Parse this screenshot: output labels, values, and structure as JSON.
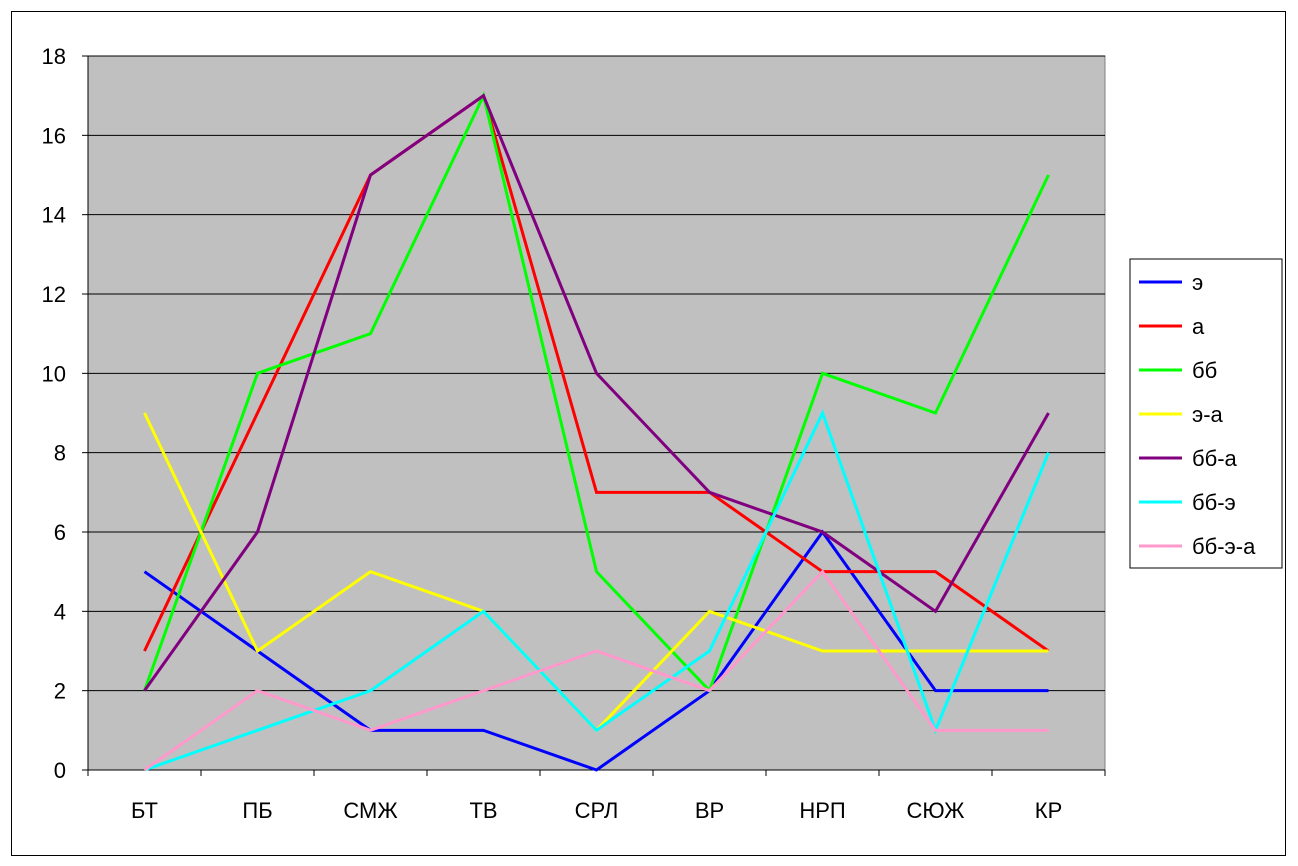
{
  "chart_data": {
    "type": "line",
    "categories": [
      "БТ",
      "ПБ",
      "СМЖ",
      "ТВ",
      "СРЛ",
      "ВР",
      "НРП",
      "СЮЖ",
      "КР"
    ],
    "ylim": [
      0,
      18
    ],
    "yticks": [
      0,
      2,
      4,
      6,
      8,
      10,
      12,
      14,
      16,
      18
    ],
    "grid": true,
    "plot_background": "#c0c0c0",
    "legend_position": "right",
    "series": [
      {
        "name": "э",
        "color": "#0000ff",
        "values": [
          5,
          3,
          1,
          1,
          0,
          2,
          6,
          2,
          2
        ]
      },
      {
        "name": "а",
        "color": "#ff0000",
        "values": [
          3,
          9,
          15,
          17,
          7,
          7,
          5,
          5,
          3
        ]
      },
      {
        "name": "бб",
        "color": "#00ff00",
        "values": [
          2,
          10,
          11,
          17,
          5,
          2,
          10,
          9,
          15
        ]
      },
      {
        "name": "э-а",
        "color": "#ffff00",
        "values": [
          9,
          3,
          5,
          4,
          1,
          4,
          3,
          3,
          3
        ]
      },
      {
        "name": "бб-а",
        "color": "#800080",
        "values": [
          2,
          6,
          15,
          17,
          10,
          7,
          6,
          4,
          9
        ]
      },
      {
        "name": "бб-э",
        "color": "#00ffff",
        "values": [
          0,
          1,
          2,
          4,
          1,
          3,
          9,
          1,
          8
        ]
      },
      {
        "name": "бб-э-а",
        "color": "#ff99cc",
        "values": [
          0,
          2,
          1,
          2,
          3,
          2,
          5,
          1,
          1
        ]
      }
    ]
  }
}
